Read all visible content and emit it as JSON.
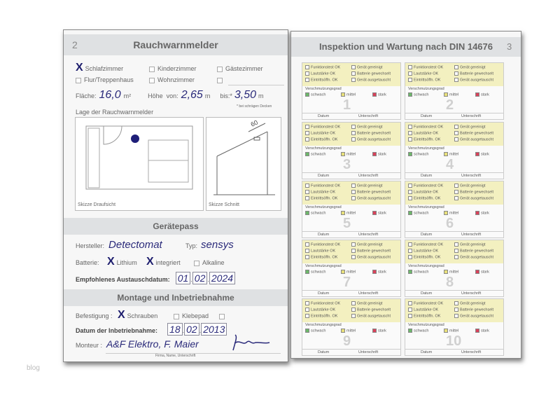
{
  "left_page": {
    "page_number": "2",
    "title": "Rauchwarnmelder",
    "rooms": [
      {
        "label": "Schlafzimmer",
        "checked": true
      },
      {
        "label": "Kinderzimmer",
        "checked": false
      },
      {
        "label": "Gästezimmer",
        "checked": false
      },
      {
        "label": "Flur/Treppenhaus",
        "checked": false
      },
      {
        "label": "Wohnzimmer",
        "checked": false
      },
      {
        "label": "",
        "checked": false
      }
    ],
    "area_label": "Fläche:",
    "area_value": "16,0",
    "area_unit": "m²",
    "height_label": "Höhe",
    "from_label": "von:",
    "height_from": "2,65",
    "unit_m": "m",
    "to_label": "bis:*",
    "height_to": "3,50",
    "footnote": "* bei schrägen Decken",
    "location_label": "Lage der Rauchwarnmelder",
    "sketch_top": "Skizze Draufsicht",
    "sketch_section": "Skizze Schnitt",
    "sketch_dimension": "60",
    "device_pass_title": "Gerätepass",
    "manufacturer_label": "Hersteller:",
    "manufacturer": "Detectomat",
    "type_label": "Typ:",
    "type": "sensys",
    "battery_label": "Batterie:",
    "battery_options": [
      {
        "label": "Lithium",
        "checked": true
      },
      {
        "label": "integriert",
        "checked": true
      },
      {
        "label": "Alkaline",
        "checked": false
      }
    ],
    "replace_label": "Empfohlenes Austauschdatum:",
    "replace_date": {
      "day": "01",
      "month": "02",
      "year": "2024"
    },
    "mounting_title": "Montage und Inbetriebnahme",
    "fixing_label": "Befestigung :",
    "fixing_options": [
      {
        "label": "Schrauben",
        "checked": true
      },
      {
        "label": "Klebepad",
        "checked": false
      },
      {
        "label": "",
        "checked": false
      }
    ],
    "commissioning_label": "Datum der Inbetriebnahme:",
    "commissioning_date": {
      "day": "18",
      "month": "02",
      "year": "2013"
    },
    "installer_label": "Monteur :",
    "installer": "A&F Elektro, F. Maier",
    "installer_caption": "Firma, Name, Unterschrift"
  },
  "right_page": {
    "title": "Inspektion und Wartung nach DIN 14676",
    "page_number": "3",
    "card_template": {
      "checks": [
        "Funktionstest OK",
        "Gerät gereinigt",
        "Lautstärke OK",
        "Batterie gewechselt",
        "Eintrittsöffn. OK",
        "Gerät ausgetauscht"
      ],
      "soiling_label": "Verschmutzungsgrad",
      "soiling_levels": [
        {
          "label": "schwach",
          "color": "#6cb86a"
        },
        {
          "label": "mittel",
          "color": "#e8e07a"
        },
        {
          "label": "stark",
          "color": "#d9425a"
        }
      ],
      "date_label": "Datum",
      "signature_label": "Unterschrift"
    },
    "cards": [
      "1",
      "2",
      "3",
      "4",
      "5",
      "6",
      "7",
      "8",
      "9",
      "10"
    ]
  },
  "watermark": "blog"
}
